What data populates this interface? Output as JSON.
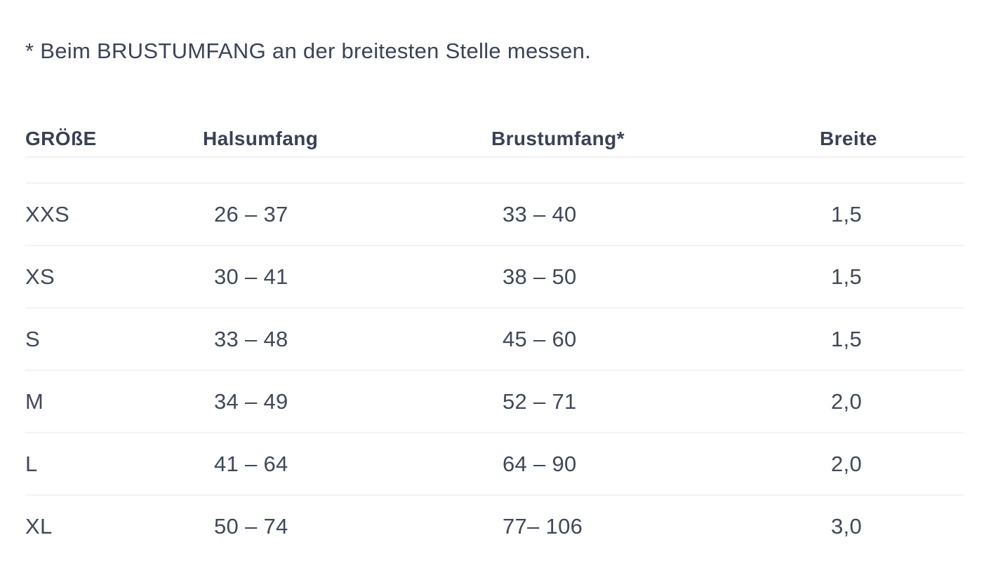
{
  "note": {
    "text": "* Beim BRUSTUMFANG an der breitesten Stelle messen."
  },
  "table": {
    "headers": [
      "GRÖßE",
      "Halsumfang",
      "Brustumfang*",
      "Breite"
    ],
    "rows": [
      {
        "size": "XXS",
        "halsumfang": "26 – 37",
        "brustumfang": "33 – 40",
        "breite": "1,5"
      },
      {
        "size": "XS",
        "halsumfang": "30 – 41",
        "brustumfang": "38 – 50",
        "breite": "1,5"
      },
      {
        "size": "S",
        "halsumfang": "33 – 48",
        "brustumfang": "45 – 60",
        "breite": "1,5"
      },
      {
        "size": "M",
        "halsumfang": "34 – 49",
        "brustumfang": "52 – 71",
        "breite": "2,0"
      },
      {
        "size": "L",
        "halsumfang": "41 – 64",
        "brustumfang": "64 – 90",
        "breite": "2,0"
      },
      {
        "size": "XL",
        "halsumfang": "50 – 74",
        "brustumfang": "77– 106",
        "breite": "3,0"
      }
    ]
  },
  "colors": {
    "background": "#ffffff",
    "heading_text": "#394154",
    "body_text": "#404859",
    "divider": "#f1f1f1"
  }
}
